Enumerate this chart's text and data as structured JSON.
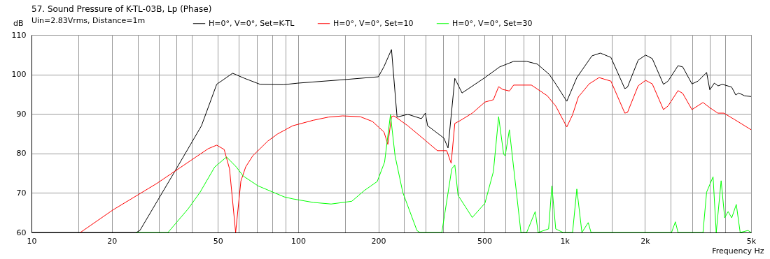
{
  "chart_data": {
    "type": "line",
    "title": "57. Sound Pressure of K-TL-03B, Lp (Phase)",
    "subtitle": "Uin=2.83Vrms, Distance=1m",
    "xlabel": "Frequency Hz",
    "ylabel": "dB",
    "log": "x",
    "grid": true,
    "legend": "top left",
    "xlim": [
      10,
      5000
    ],
    "ylim": [
      60,
      110
    ],
    "xticks": [
      10,
      {
        "value": 15,
        "label": null
      },
      20,
      {
        "value": 25,
        "label": null
      },
      {
        "value": 30,
        "label": null
      },
      {
        "value": 35,
        "label": null
      },
      {
        "value": 40,
        "label": null
      },
      50,
      {
        "value": 60,
        "label": null
      },
      {
        "value": 70,
        "label": null
      },
      {
        "value": 80,
        "label": null
      },
      {
        "value": 90,
        "label": null
      },
      100,
      {
        "value": 150,
        "label": null
      },
      200,
      {
        "value": 250,
        "label": null
      },
      {
        "value": 300,
        "label": null
      },
      {
        "value": 350,
        "label": null
      },
      {
        "value": 400,
        "label": null
      },
      500,
      {
        "value": 600,
        "label": null
      },
      {
        "value": 700,
        "label": null
      },
      {
        "value": 800,
        "label": null
      },
      {
        "value": 900,
        "label": null
      },
      {
        "value": 1000,
        "label": "1k"
      },
      {
        "value": 1500,
        "label": null
      },
      {
        "value": 2000,
        "label": "2k"
      },
      {
        "value": 2500,
        "label": null
      },
      {
        "value": 3000,
        "label": null
      },
      {
        "value": 3500,
        "label": null
      },
      {
        "value": 4000,
        "label": null
      },
      {
        "value": 5000,
        "label": "5k"
      }
    ],
    "yticks": [
      60,
      70,
      80,
      90,
      100,
      110
    ],
    "series": [
      {
        "name": "H=0°, V=0°, Set=K-TL",
        "color": "#000000",
        "x": [
          10,
          24.7,
          25.5,
          34.3,
          43.4,
          49.5,
          56.8,
          63,
          72,
          88,
          100,
          150,
          200,
          210,
          224,
          235,
          258,
          290,
          300,
          306,
          352,
          365,
          387,
          412,
          502,
          570,
          643,
          720,
          790,
          875,
          925,
          1018,
          1110,
          1265,
          1360,
          1490,
          1680,
          1720,
          1885,
          2010,
          2130,
          2345,
          2440,
          2660,
          2770,
          3000,
          3160,
          3405,
          3500,
          3640,
          3760,
          3900,
          4225,
          4380,
          4500,
          4720,
          5000
        ],
        "values": [
          60,
          60,
          60.5,
          75.2,
          87,
          97.5,
          100.3,
          99,
          97.5,
          97.4,
          97.8,
          98.7,
          99.4,
          102,
          106.3,
          89.2,
          89.9,
          88.8,
          90.2,
          87,
          83.9,
          81.4,
          99,
          95.3,
          99.2,
          101.9,
          103.3,
          103.3,
          102.6,
          100,
          97.6,
          93.2,
          99.2,
          104.7,
          105.4,
          104.3,
          96.4,
          96.8,
          103.6,
          104.9,
          104,
          97.5,
          98.3,
          102.2,
          101.9,
          97.6,
          98.3,
          100.5,
          96.1,
          97.8,
          97.1,
          97.5,
          96.8,
          94.8,
          95.3,
          94.6,
          94.4
        ]
      },
      {
        "name": "H=0°, V=0°, Set=10",
        "color": "#ff0000",
        "x": [
          15.25,
          20.2,
          29.5,
          42,
          46,
          49.5,
          52.8,
          55.3,
          58.3,
          61,
          63.6,
          67.6,
          76.9,
          83.6,
          95.4,
          114,
          130,
          147,
          171,
          190,
          210,
          217,
          224,
          229,
          258,
          300,
          333,
          361,
          375,
          387,
          405,
          450,
          502,
          540,
          565,
          585,
          620,
          643,
          750,
          860,
          925,
          1018,
          1070,
          1125,
          1235,
          1345,
          1490,
          1680,
          1720,
          1885,
          2010,
          2130,
          2345,
          2440,
          2660,
          2770,
          3000,
          3300,
          3480,
          3750,
          3950,
          4330,
          5000
        ],
        "values": [
          60,
          65.7,
          72.4,
          79.4,
          81.2,
          82.1,
          81,
          76.1,
          60,
          73,
          76.6,
          79.4,
          83.1,
          84.9,
          87,
          88.4,
          89.2,
          89.5,
          89.3,
          88.1,
          85.4,
          82.3,
          89.3,
          89.5,
          87,
          83.3,
          80.7,
          80.7,
          77.5,
          87.6,
          88.3,
          90.2,
          93,
          93.6,
          96.9,
          96.2,
          95.8,
          97.3,
          97.3,
          94.6,
          92,
          86.7,
          89.8,
          94.3,
          97.6,
          99.2,
          98.3,
          90.2,
          90.4,
          97.1,
          98.5,
          97.6,
          91.1,
          92,
          95.9,
          95.2,
          91.1,
          92.9,
          91.7,
          90.2,
          90.2,
          88.6,
          86
        ]
      },
      {
        "name": "H=0°, V=0°, Set=30",
        "color": "#00ff00",
        "x": [
          24.7,
          32.5,
          38.7,
          42.8,
          48.7,
          53.9,
          58.6,
          62.2,
          70.7,
          88.7,
          95.5,
          114,
          133,
          159,
          177,
          198,
          211,
          222,
          231,
          247,
          279,
          286,
          346,
          377,
          387,
          398,
          450,
          502,
          540,
          565,
          590,
          598,
          620,
          685,
          720,
          775,
          795,
          870,
          895,
          925,
          985,
          1070,
          1110,
          1160,
          1225,
          1255,
          2515,
          2600,
          2660,
          3300,
          3405,
          3600,
          3700,
          3860,
          3980,
          4100,
          4230,
          4400,
          4550,
          4870,
          5000
        ],
        "values": [
          60,
          60,
          66,
          70.1,
          76.6,
          79.1,
          76.6,
          74.3,
          71.8,
          69,
          68.5,
          67.6,
          67.2,
          67.9,
          70.6,
          72.9,
          77.8,
          89.8,
          79.4,
          70.1,
          60.5,
          60,
          60,
          76.1,
          77.1,
          69.4,
          63.8,
          67.4,
          75.4,
          89.3,
          79.8,
          79.4,
          86,
          60,
          60,
          65.3,
          60,
          60.9,
          71.8,
          60.9,
          60,
          60,
          71,
          60,
          62.5,
          60,
          60,
          62.7,
          60,
          60,
          70.2,
          74.1,
          60,
          73.1,
          63.7,
          65.3,
          63.7,
          67.1,
          60,
          60.5,
          60
        ]
      }
    ]
  }
}
